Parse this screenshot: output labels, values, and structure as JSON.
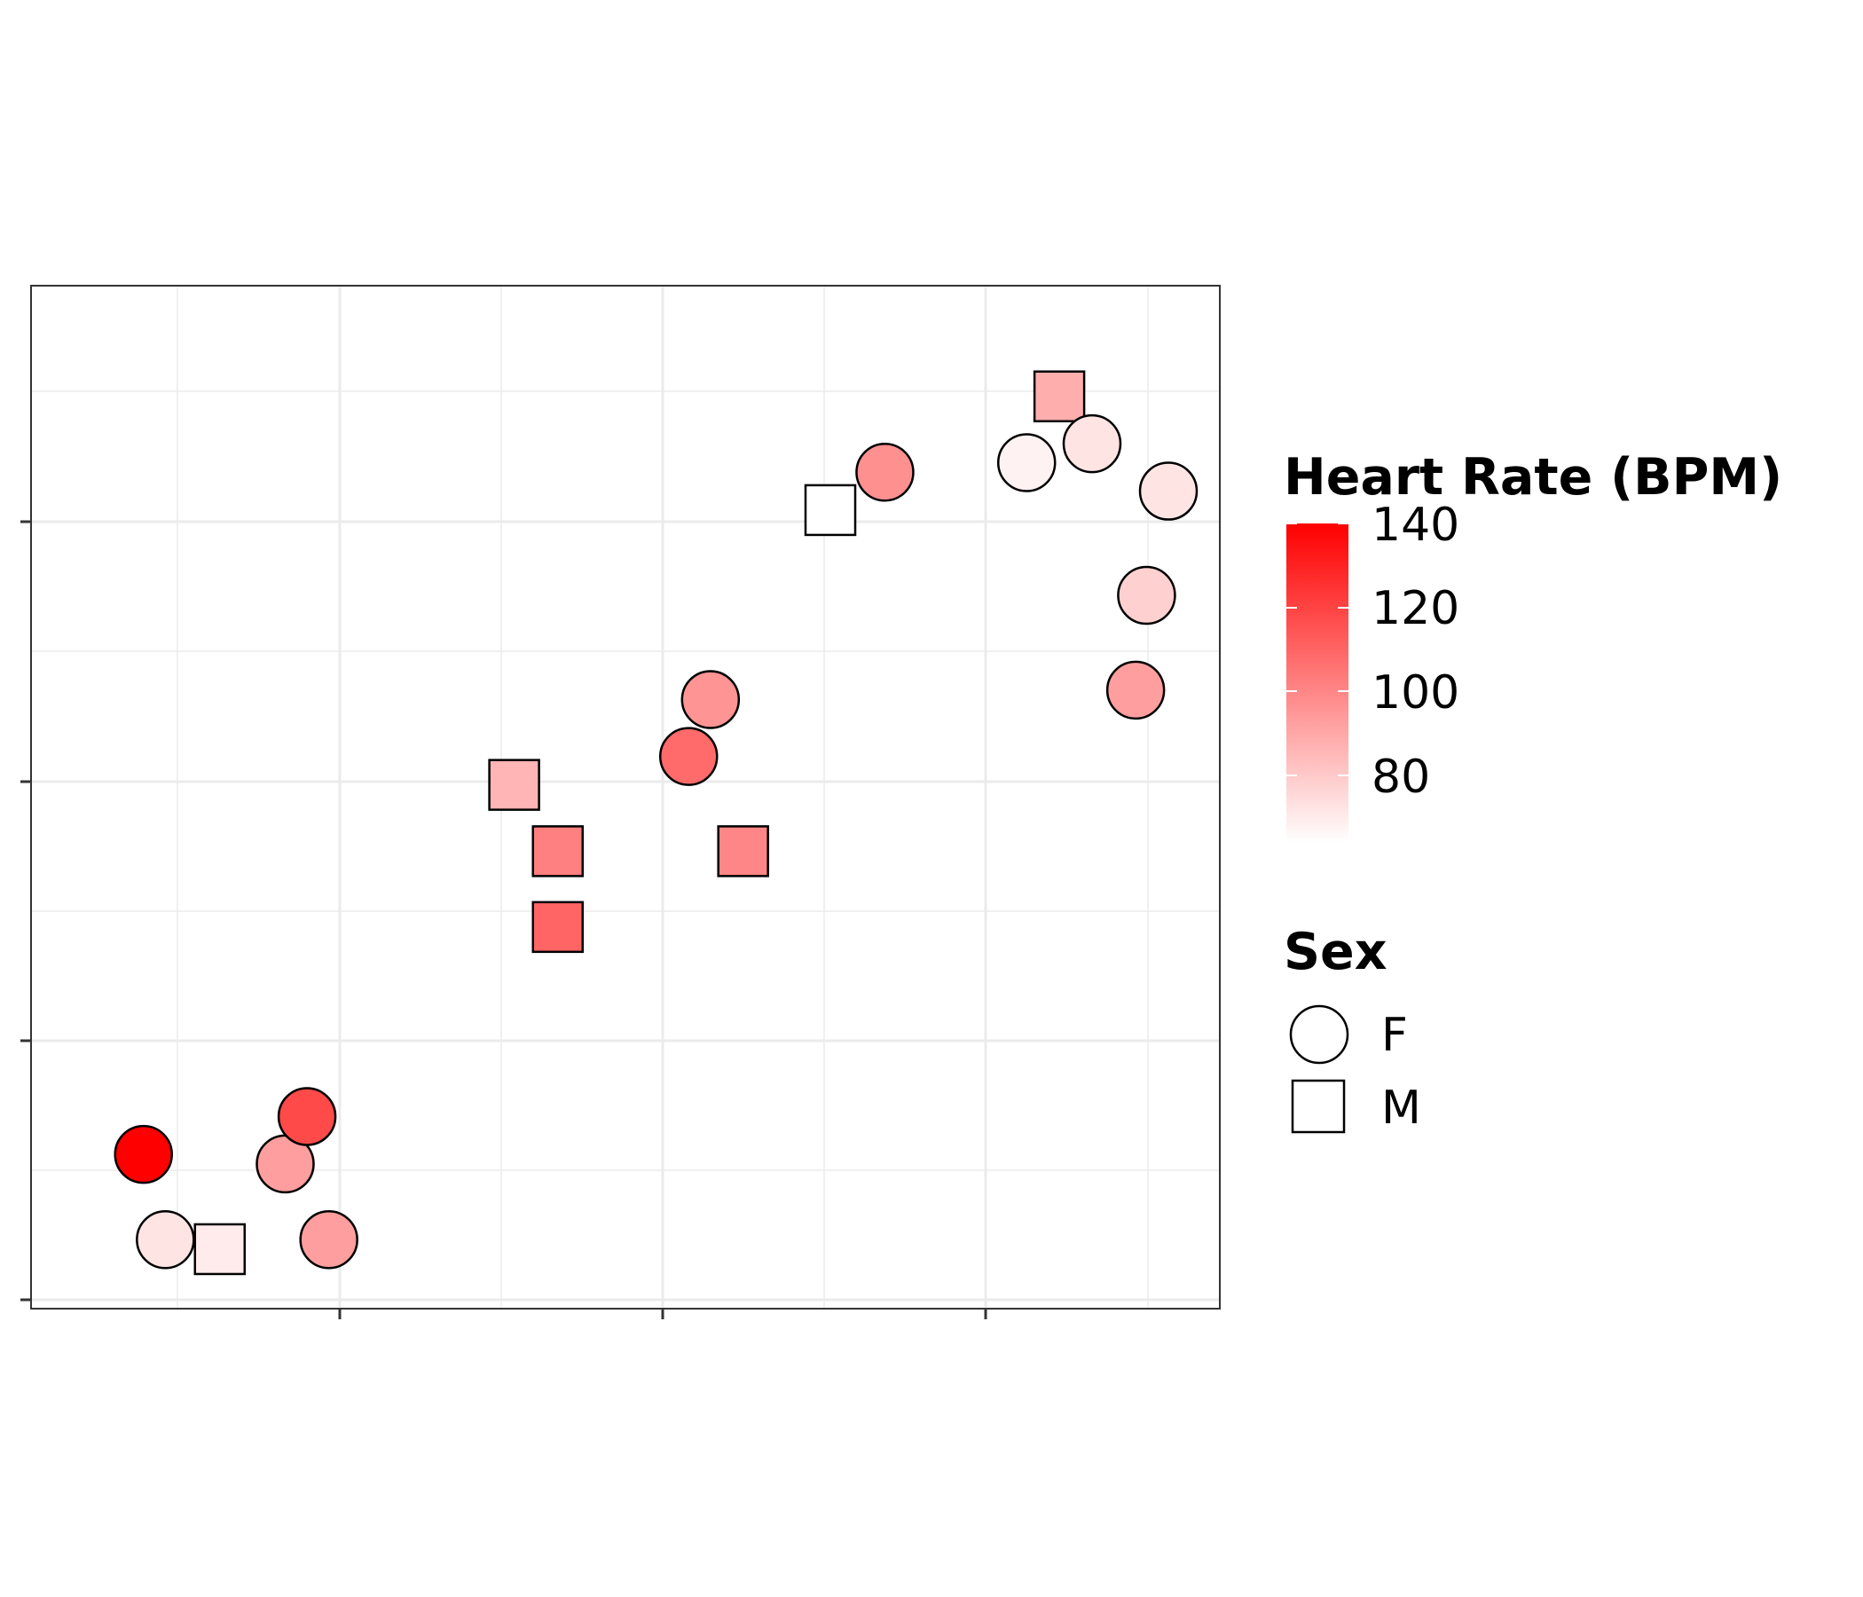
{
  "chart_data": {
    "type": "scatter",
    "title": "",
    "xlabel": "",
    "ylabel": "",
    "grid": true,
    "x_tick_labels": [
      "",
      "",
      ""
    ],
    "y_tick_labels": [
      "",
      "",
      "",
      ""
    ],
    "legend_position": "right",
    "color_scale": {
      "title": "Heart Rate (BPM)",
      "low_color": "#ffffff",
      "high_color": "#ff0000",
      "range": [
        64,
        140
      ],
      "ticks": [
        "140",
        "120",
        "100",
        "80"
      ]
    },
    "shape_legend": {
      "title": "Sex",
      "entries": [
        {
          "label": "F",
          "shape": "circle"
        },
        {
          "label": "M",
          "shape": "square"
        }
      ]
    },
    "points": [
      {
        "x": 0.06,
        "y": 0.13,
        "sex": "F",
        "heart_rate": 140
      },
      {
        "x": 0.08,
        "y": 0.04,
        "sex": "F",
        "heart_rate": 72
      },
      {
        "x": 0.13,
        "y": 0.03,
        "sex": "M",
        "heart_rate": 70
      },
      {
        "x": 0.19,
        "y": 0.12,
        "sex": "F",
        "heart_rate": 93
      },
      {
        "x": 0.21,
        "y": 0.17,
        "sex": "F",
        "heart_rate": 118
      },
      {
        "x": 0.23,
        "y": 0.04,
        "sex": "F",
        "heart_rate": 93
      },
      {
        "x": 0.4,
        "y": 0.52,
        "sex": "M",
        "heart_rate": 86
      },
      {
        "x": 0.44,
        "y": 0.45,
        "sex": "M",
        "heart_rate": 102
      },
      {
        "x": 0.44,
        "y": 0.37,
        "sex": "M",
        "heart_rate": 110
      },
      {
        "x": 0.58,
        "y": 0.61,
        "sex": "F",
        "heart_rate": 96
      },
      {
        "x": 0.56,
        "y": 0.55,
        "sex": "F",
        "heart_rate": 108
      },
      {
        "x": 0.61,
        "y": 0.45,
        "sex": "M",
        "heart_rate": 100
      },
      {
        "x": 0.69,
        "y": 0.81,
        "sex": "M",
        "heart_rate": 64
      },
      {
        "x": 0.74,
        "y": 0.85,
        "sex": "F",
        "heart_rate": 97
      },
      {
        "x": 0.87,
        "y": 0.86,
        "sex": "F",
        "heart_rate": 68
      },
      {
        "x": 0.9,
        "y": 0.93,
        "sex": "M",
        "heart_rate": 88
      },
      {
        "x": 0.93,
        "y": 0.88,
        "sex": "F",
        "heart_rate": 72
      },
      {
        "x": 1.0,
        "y": 0.83,
        "sex": "F",
        "heart_rate": 72
      },
      {
        "x": 0.98,
        "y": 0.72,
        "sex": "F",
        "heart_rate": 78
      },
      {
        "x": 0.97,
        "y": 0.62,
        "sex": "F",
        "heart_rate": 93
      }
    ]
  }
}
